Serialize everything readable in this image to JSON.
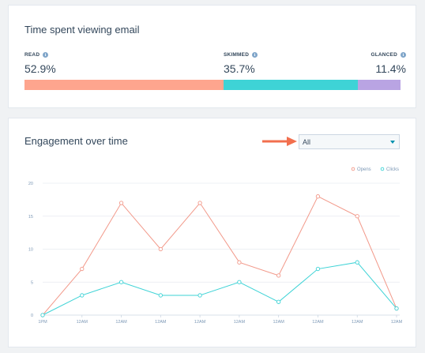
{
  "time_card": {
    "title": "Time spent viewing email",
    "metrics": [
      {
        "label": "READ",
        "value": "52.9%",
        "fraction": 0.529,
        "color": "#fea58e"
      },
      {
        "label": "SKIMMED",
        "value": "35.7%",
        "fraction": 0.357,
        "color": "#3ed3d6"
      },
      {
        "label": "GLANCED",
        "value": "11.4%",
        "fraction": 0.114,
        "color": "#b9a4e3"
      }
    ],
    "info_icon_glyph": "i"
  },
  "engagement_card": {
    "title": "Engagement over time",
    "filter": {
      "selected": "All"
    }
  },
  "chart_data": {
    "type": "line",
    "categories": [
      "1PM",
      "12AM",
      "12AM",
      "12AM",
      "12AM",
      "12AM",
      "12AM",
      "12AM",
      "12AM",
      "12AM"
    ],
    "series": [
      {
        "name": "Opens",
        "color": "#f2998a",
        "values": [
          0,
          7,
          17,
          10,
          17,
          8,
          6,
          18,
          15,
          1
        ]
      },
      {
        "name": "Clicks",
        "color": "#3ed3d6",
        "values": [
          0,
          3,
          5,
          3,
          3,
          5,
          2,
          7,
          8,
          1
        ]
      }
    ],
    "ylim": [
      0,
      20
    ],
    "yticks": [
      0,
      5,
      10,
      15,
      20
    ],
    "grid": true,
    "legend": "top-right"
  }
}
